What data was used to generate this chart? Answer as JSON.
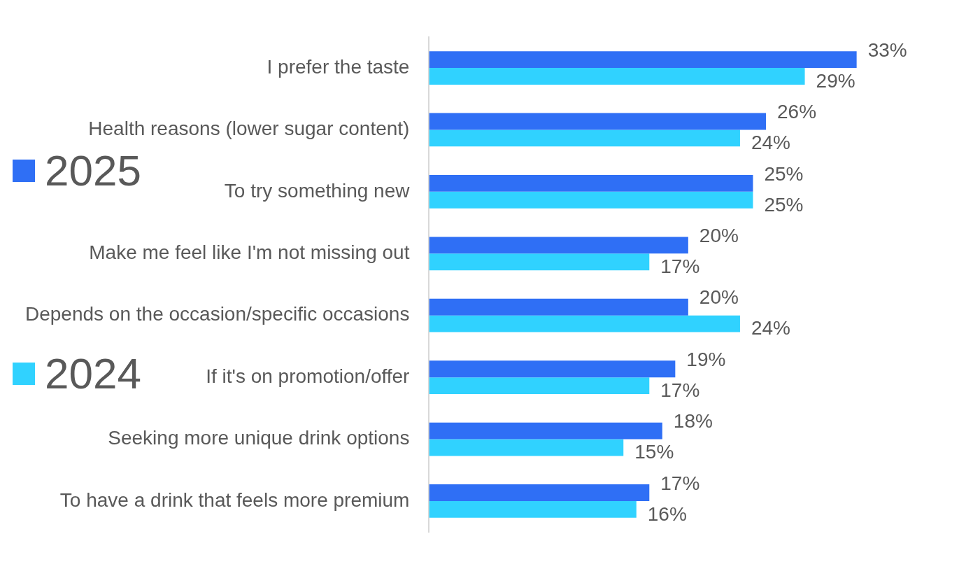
{
  "chart_data": {
    "type": "bar",
    "orientation": "horizontal",
    "categories": [
      "I prefer the taste",
      "Health reasons (lower sugar content)",
      "To try something new",
      "Make me feel like I'm not missing out",
      "Depends on the occasion/specific occasions",
      "If it's on promotion/offer",
      "Seeking more unique drink options",
      "To have a drink that feels more premium"
    ],
    "series": [
      {
        "name": "2025",
        "color": "#2f6ff5",
        "values": [
          33,
          26,
          25,
          20,
          20,
          19,
          18,
          17
        ],
        "value_labels": [
          "33%",
          "26%",
          "25%",
          "20%",
          "20%",
          "19%",
          "18%",
          "17%"
        ]
      },
      {
        "name": "2024",
        "color": "#30d2ff",
        "values": [
          29,
          24,
          25,
          17,
          24,
          17,
          15,
          16
        ],
        "value_labels": [
          "29%",
          "24%",
          "25%",
          "17%",
          "24%",
          "17%",
          "15%",
          "16%"
        ]
      }
    ],
    "legend": "left",
    "grid": false
  }
}
